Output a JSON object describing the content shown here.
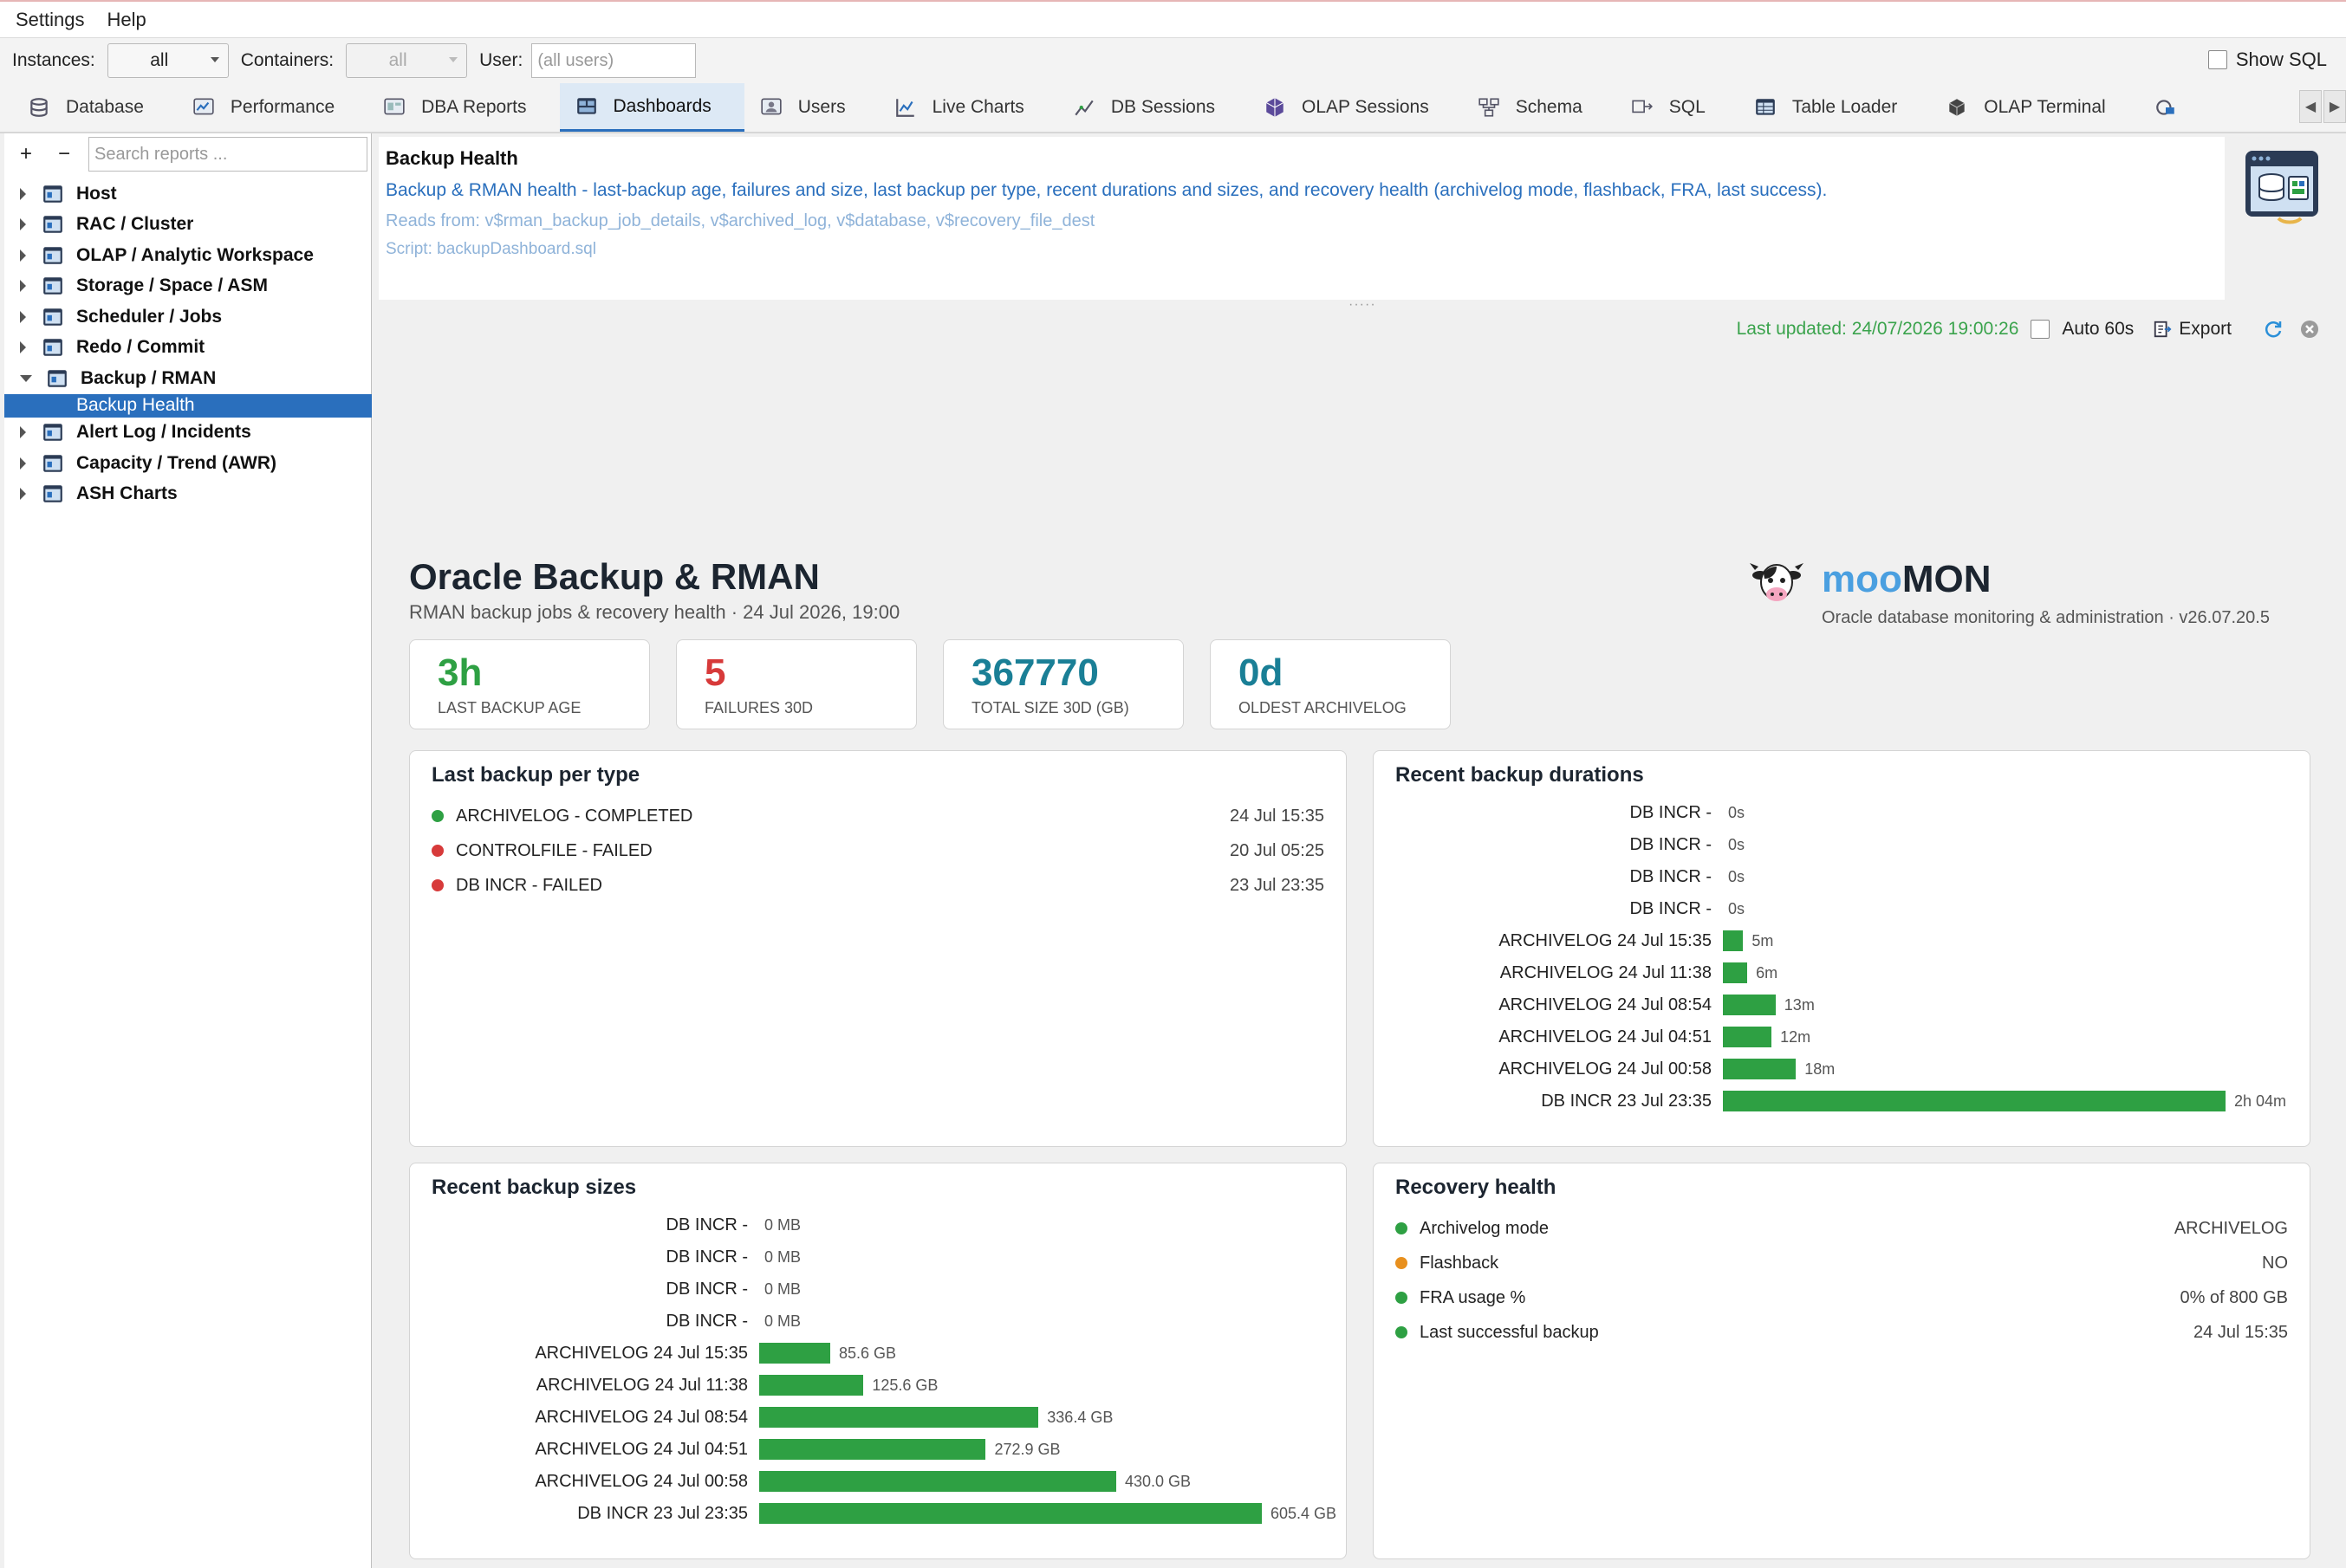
{
  "menu": {
    "settings": "Settings",
    "help": "Help"
  },
  "filters": {
    "instances_label": "Instances:",
    "instances_value": "all",
    "containers_label": "Containers:",
    "containers_value": "all",
    "user_label": "User:",
    "user_placeholder": "(all users)",
    "show_sql": "Show SQL"
  },
  "tabs": [
    {
      "label": "Database",
      "icon": "database-icon"
    },
    {
      "label": "Performance",
      "icon": "performance-icon"
    },
    {
      "label": "DBA Reports",
      "icon": "reports-icon"
    },
    {
      "label": "Dashboards",
      "icon": "dashboard-icon"
    },
    {
      "label": "Users",
      "icon": "users-icon"
    },
    {
      "label": "Live Charts",
      "icon": "chart-icon"
    },
    {
      "label": "DB Sessions",
      "icon": "sessions-icon"
    },
    {
      "label": "OLAP Sessions",
      "icon": "olap-icon"
    },
    {
      "label": "Schema",
      "icon": "schema-icon"
    },
    {
      "label": "SQL",
      "icon": "sql-icon"
    },
    {
      "label": "Table Loader",
      "icon": "table-loader-icon"
    },
    {
      "label": "OLAP Terminal",
      "icon": "terminal-icon"
    }
  ],
  "sidebar": {
    "add": "+",
    "remove": "−",
    "search_placeholder": "Search reports ...",
    "items": [
      {
        "label": "Host"
      },
      {
        "label": "RAC / Cluster"
      },
      {
        "label": "OLAP / Analytic Workspace"
      },
      {
        "label": "Storage / Space / ASM"
      },
      {
        "label": "Scheduler / Jobs"
      },
      {
        "label": "Redo / Commit"
      },
      {
        "label": "Backup / RMAN",
        "children": [
          "Backup Health"
        ]
      },
      {
        "label": "Alert Log / Incidents"
      },
      {
        "label": "Capacity / Trend (AWR)"
      },
      {
        "label": "ASH Charts"
      }
    ]
  },
  "info": {
    "title": "Backup Health",
    "description": "Backup & RMAN health - last-backup age, failures and size, last backup per type, recent durations and sizes, and recovery health (archivelog mode, flashback, FRA, last success).",
    "reads": "Reads from: v$rman_backup_job_details, v$archived_log, v$database, v$recovery_file_dest",
    "script": "Script: backupDashboard.sql"
  },
  "status": {
    "last_updated": "Last updated: 24/07/2026 19:00:26",
    "auto": "Auto 60s",
    "export": "Export"
  },
  "dashboard": {
    "title": "Oracle Backup & RMAN",
    "subtitle": "RMAN backup jobs & recovery health · 24 Jul 2026, 19:00",
    "brand_moo": "moo",
    "brand_mon": "MON",
    "brand_tagline": "Oracle database monitoring & administration · v26.07.20.5",
    "kpis": [
      {
        "value": "3h",
        "label": "LAST BACKUP AGE",
        "color": "#2ea043"
      },
      {
        "value": "5",
        "label": "FAILURES 30D",
        "color": "#d73a3a"
      },
      {
        "value": "367770",
        "label": "TOTAL SIZE 30D (GB)",
        "color": "#1a7f96"
      },
      {
        "value": "0d",
        "label": "OLDEST ARCHIVELOG",
        "color": "#1a7f96"
      }
    ],
    "last_backup": {
      "title": "Last backup per type",
      "rows": [
        {
          "label": "ARCHIVELOG - COMPLETED",
          "time": "24 Jul 15:35",
          "status_color": "#2ea043"
        },
        {
          "label": "CONTROLFILE - FAILED",
          "time": "20 Jul 05:25",
          "status_color": "#d73a3a"
        },
        {
          "label": "DB INCR - FAILED",
          "time": "23 Jul 23:35",
          "status_color": "#d73a3a"
        }
      ]
    },
    "durations": {
      "title": "Recent backup durations",
      "rows": [
        {
          "label": "DB INCR -",
          "minutes": 0,
          "text": "0s"
        },
        {
          "label": "DB INCR -",
          "minutes": 0,
          "text": "0s"
        },
        {
          "label": "DB INCR -",
          "minutes": 0,
          "text": "0s"
        },
        {
          "label": "DB INCR -",
          "minutes": 0,
          "text": "0s"
        },
        {
          "label": "ARCHIVELOG 24 Jul 15:35",
          "minutes": 5,
          "text": "5m"
        },
        {
          "label": "ARCHIVELOG 24 Jul 11:38",
          "minutes": 6,
          "text": "6m"
        },
        {
          "label": "ARCHIVELOG 24 Jul 08:54",
          "minutes": 13,
          "text": "13m"
        },
        {
          "label": "ARCHIVELOG 24 Jul 04:51",
          "minutes": 12,
          "text": "12m"
        },
        {
          "label": "ARCHIVELOG 24 Jul 00:58",
          "minutes": 18,
          "text": "18m"
        },
        {
          "label": "DB INCR 23 Jul 23:35",
          "minutes": 124,
          "text": "2h 04m"
        }
      ]
    },
    "sizes": {
      "title": "Recent backup sizes",
      "rows": [
        {
          "label": "DB INCR -",
          "gb": 0,
          "text": "0 MB"
        },
        {
          "label": "DB INCR -",
          "gb": 0,
          "text": "0 MB"
        },
        {
          "label": "DB INCR -",
          "gb": 0,
          "text": "0 MB"
        },
        {
          "label": "DB INCR -",
          "gb": 0,
          "text": "0 MB"
        },
        {
          "label": "ARCHIVELOG 24 Jul 15:35",
          "gb": 85.6,
          "text": "85.6 GB"
        },
        {
          "label": "ARCHIVELOG 24 Jul 11:38",
          "gb": 125.6,
          "text": "125.6 GB"
        },
        {
          "label": "ARCHIVELOG 24 Jul 08:54",
          "gb": 336.4,
          "text": "336.4 GB"
        },
        {
          "label": "ARCHIVELOG 24 Jul 04:51",
          "gb": 272.9,
          "text": "272.9 GB"
        },
        {
          "label": "ARCHIVELOG 24 Jul 00:58",
          "gb": 430.0,
          "text": "430.0 GB"
        },
        {
          "label": "DB INCR 23 Jul 23:35",
          "gb": 605.4,
          "text": "605.4 GB"
        }
      ]
    },
    "recovery": {
      "title": "Recovery health",
      "rows": [
        {
          "label": "Archivelog mode",
          "value": "ARCHIVELOG",
          "status_color": "#2ea043"
        },
        {
          "label": "Flashback",
          "value": "NO",
          "status_color": "#e8901e"
        },
        {
          "label": "FRA usage %",
          "value": "0% of 800 GB",
          "status_color": "#2ea043"
        },
        {
          "label": "Last successful backup",
          "value": "24 Jul 15:35",
          "status_color": "#2ea043"
        }
      ]
    }
  },
  "chart_data": [
    {
      "type": "bar",
      "title": "Recent backup durations",
      "categories": [
        "DB INCR -",
        "DB INCR -",
        "DB INCR -",
        "DB INCR -",
        "ARCHIVELOG 24 Jul 15:35",
        "ARCHIVELOG 24 Jul 11:38",
        "ARCHIVELOG 24 Jul 08:54",
        "ARCHIVELOG 24 Jul 04:51",
        "ARCHIVELOG 24 Jul 00:58",
        "DB INCR 23 Jul 23:35"
      ],
      "values": [
        0,
        0,
        0,
        0,
        5,
        6,
        13,
        12,
        18,
        124
      ],
      "orientation": "horizontal",
      "color": "#2ea043"
    },
    {
      "type": "bar",
      "title": "Recent backup sizes",
      "categories": [
        "DB INCR -",
        "DB INCR -",
        "DB INCR -",
        "DB INCR -",
        "ARCHIVELOG 24 Jul 15:35",
        "ARCHIVELOG 24 Jul 11:38",
        "ARCHIVELOG 24 Jul 08:54",
        "ARCHIVELOG 24 Jul 04:51",
        "ARCHIVELOG 24 Jul 00:58",
        "DB INCR 23 Jul 23:35"
      ],
      "values": [
        0,
        0,
        0,
        0,
        85.6,
        125.6,
        336.4,
        272.9,
        430.0,
        605.4
      ],
      "orientation": "horizontal",
      "color": "#2ea043"
    }
  ]
}
